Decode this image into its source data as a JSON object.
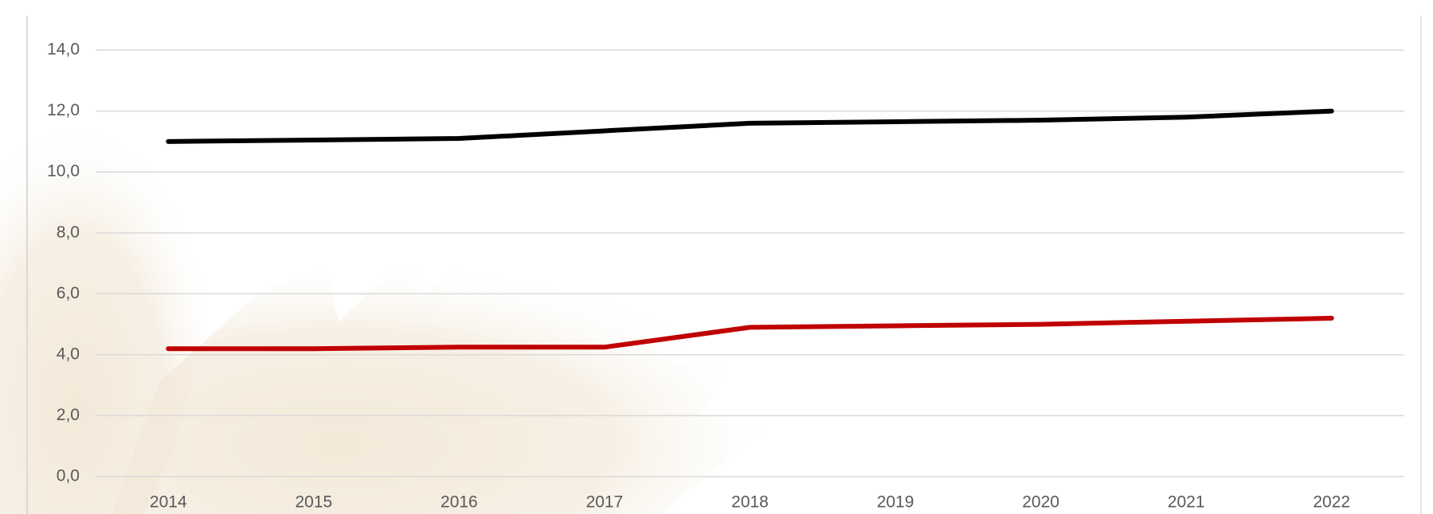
{
  "chart_data": {
    "type": "line",
    "categories": [
      "2014",
      "2015",
      "2016",
      "2017",
      "2018",
      "2019",
      "2020",
      "2021",
      "2022"
    ],
    "series": [
      {
        "color": "#000000",
        "values": [
          11.0,
          11.05,
          11.1,
          11.35,
          11.6,
          11.65,
          11.7,
          11.8,
          12.0
        ]
      },
      {
        "color": "#c00000",
        "values": [
          4.2,
          4.2,
          4.25,
          4.25,
          4.9,
          4.95,
          5.0,
          5.1,
          5.2
        ]
      }
    ],
    "ylim": [
      0,
      14
    ],
    "yticks": [
      {
        "value": 0,
        "label": "0,0"
      },
      {
        "value": 2,
        "label": "2,0"
      },
      {
        "value": 4,
        "label": "4,0"
      },
      {
        "value": 6,
        "label": "6,0"
      },
      {
        "value": 8,
        "label": "8,0"
      },
      {
        "value": 10,
        "label": "10,0"
      },
      {
        "value": 12,
        "label": "12,0"
      },
      {
        "value": 14,
        "label": "14,0"
      }
    ],
    "grid": true
  }
}
